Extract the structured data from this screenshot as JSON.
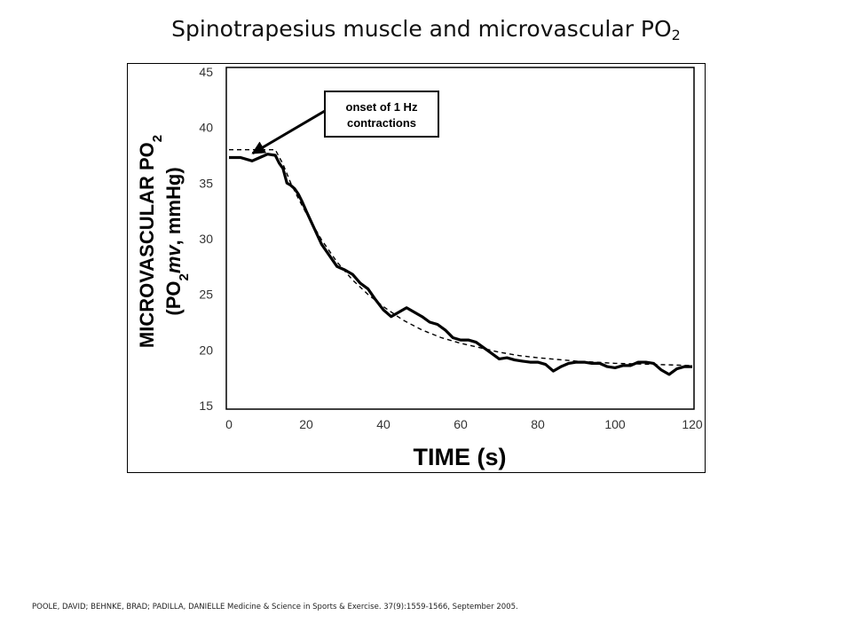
{
  "slide": {
    "title_main": "Spinotrapesius muscle and microvascular  PO",
    "title_sub": "2",
    "citation": "POOLE, DAVID; BEHNKE, BRAD; PADILLA, DANIELLE Medicine & Science in Sports & Exercise. 37(9):1559-1566, September 2005."
  },
  "chart_data": {
    "type": "line",
    "title": "",
    "xlabel": "TIME (s)",
    "ylabel_line1_main": "MICROVASCULAR PO",
    "ylabel_line1_sub": "2",
    "ylabel_line2_open": "(PO",
    "ylabel_line2_sub": "2",
    "ylabel_line2_italic": "mv",
    "ylabel_line2_close": ", mmHg)",
    "xlim": [
      0,
      120
    ],
    "ylim": [
      15,
      45
    ],
    "xticks": [
      "0",
      "20",
      "40",
      "60",
      "80",
      "100",
      "120"
    ],
    "yticks": [
      "15",
      "20",
      "25",
      "30",
      "35",
      "40",
      "45"
    ],
    "grid": false,
    "annotation": {
      "text_line1": "onset of 1 Hz",
      "text_line2": "contractions",
      "arrow_target": [
        2,
        38
      ]
    },
    "series": [
      {
        "style": "solid",
        "color": "#000000",
        "x": [
          0,
          3,
          6,
          8,
          10,
          12,
          13,
          14,
          15,
          16,
          17,
          18,
          19,
          20,
          22,
          24,
          26,
          28,
          30,
          32,
          34,
          36,
          38,
          40,
          42,
          44,
          46,
          48,
          50,
          52,
          54,
          56,
          58,
          60,
          62,
          64,
          66,
          68,
          70,
          72,
          74,
          76,
          78,
          80,
          82,
          84,
          86,
          88,
          90,
          92,
          94,
          96,
          98,
          100,
          102,
          104,
          106,
          108,
          110,
          112,
          114,
          116,
          118,
          120
        ],
        "y": [
          37.3,
          37.3,
          37.0,
          37.3,
          37.6,
          37.5,
          36.8,
          36.3,
          35.0,
          34.8,
          34.5,
          34.0,
          33.3,
          32.5,
          31.0,
          29.5,
          28.5,
          27.5,
          27.2,
          26.8,
          26.0,
          25.5,
          24.5,
          23.6,
          23.0,
          23.4,
          23.8,
          23.4,
          23.0,
          22.5,
          22.3,
          21.8,
          21.1,
          20.9,
          20.9,
          20.7,
          20.2,
          19.7,
          19.2,
          19.3,
          19.1,
          19.0,
          18.9,
          18.9,
          18.7,
          18.1,
          18.5,
          18.8,
          18.9,
          18.9,
          18.8,
          18.8,
          18.5,
          18.4,
          18.6,
          18.6,
          18.9,
          18.9,
          18.8,
          18.2,
          17.8,
          18.3,
          18.5,
          18.5
        ]
      },
      {
        "style": "dashed",
        "color": "#000000",
        "x": [
          0,
          12,
          14,
          16,
          18,
          20,
          24,
          28,
          32,
          36,
          40,
          45,
          50,
          55,
          60,
          65,
          70,
          75,
          80,
          90,
          100,
          110,
          120
        ],
        "y": [
          38.0,
          38.0,
          36.7,
          35.0,
          33.6,
          32.3,
          29.9,
          27.9,
          26.3,
          25.0,
          23.9,
          22.7,
          21.8,
          21.1,
          20.6,
          20.2,
          19.8,
          19.5,
          19.3,
          19.0,
          18.8,
          18.7,
          18.6
        ]
      }
    ]
  }
}
